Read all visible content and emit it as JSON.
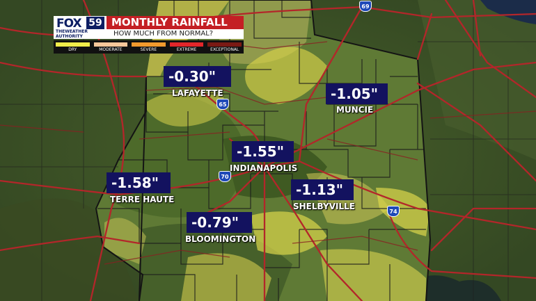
{
  "header": {
    "logo_fox": "FOX",
    "logo_num": "59",
    "logo_line1": "THEWEATHER",
    "logo_line2": "AUTHORITY",
    "title": "MONTHLY RAINFALL",
    "subtitle": "HOW MUCH FROM NORMAL?"
  },
  "legend": [
    {
      "label": "DRY",
      "color": "#f0ed4a"
    },
    {
      "label": "MODERATE",
      "color": "#f7c79a"
    },
    {
      "label": "SEVERE",
      "color": "#f29a2e"
    },
    {
      "label": "EXTREME",
      "color": "#e3262a"
    },
    {
      "label": "EXCEPTIONAL",
      "color": "#7a1a14"
    }
  ],
  "cities": [
    {
      "name": "LAFAYETTE",
      "value": "-0.30\""
    },
    {
      "name": "MUNCIE",
      "value": "-1.05\""
    },
    {
      "name": "INDIANAPOLIS",
      "value": "-1.55\""
    },
    {
      "name": "TERRE HAUTE",
      "value": "-1.58\""
    },
    {
      "name": "SHELBYVILLE",
      "value": "-1.13\""
    },
    {
      "name": "BLOOMINGTON",
      "value": "-0.79\""
    }
  ],
  "highways": [
    "69",
    "65",
    "70",
    "74"
  ],
  "colors": {
    "value_box": "#13125f",
    "title_bar": "#c41f24",
    "roads": "#b3262a",
    "county_lines": "#1c1c1c"
  }
}
